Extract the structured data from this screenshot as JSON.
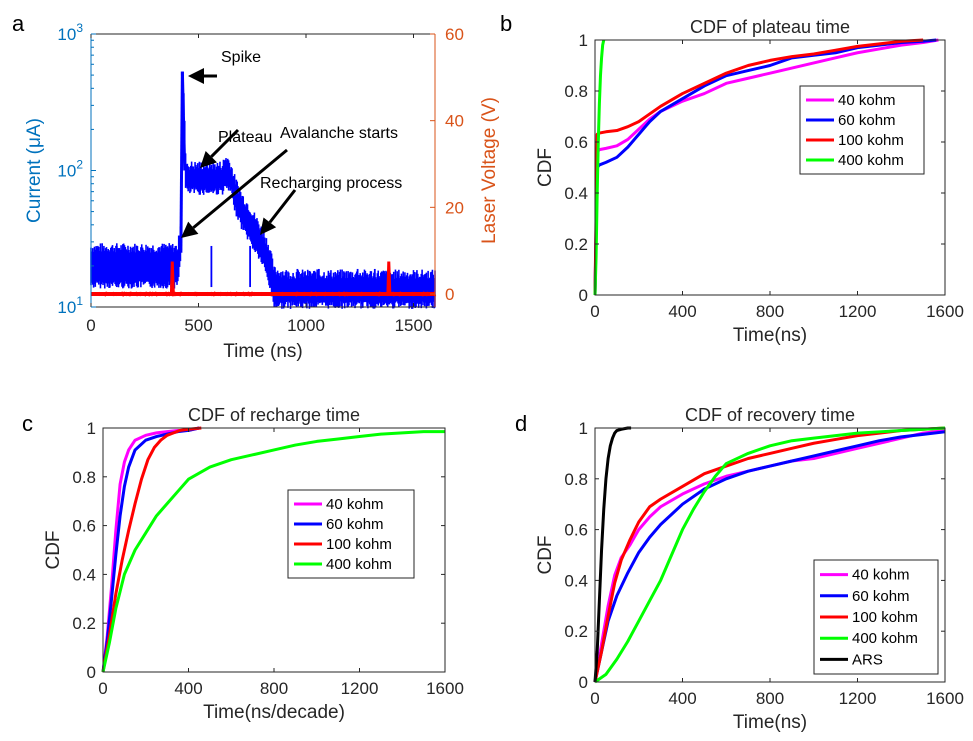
{
  "chart_data": [
    {
      "panel": "a",
      "type": "line",
      "title": "",
      "xlabel": "Time (ns)",
      "ylabel_left": "Current (μA)",
      "ylabel_right": "Laser Voltage (V)",
      "xlim": [
        0,
        1600
      ],
      "xticks": [
        "0",
        "500",
        "1000",
        "1500"
      ],
      "y_left_scale": "log",
      "y_left_lim": [
        10,
        1000
      ],
      "y_left_ticks": [
        {
          "base": "10",
          "exp": "1"
        },
        {
          "base": "10",
          "exp": "2"
        },
        {
          "base": "10",
          "exp": "3"
        }
      ],
      "y_right_lim": [
        -3,
        60
      ],
      "y_right_ticks": [
        "0",
        "20",
        "40",
        "60"
      ],
      "current_color": "#0000FF",
      "laser_color": "#FF0000",
      "current_trace": {
        "x": [
          0,
          395,
          405,
          418,
          425,
          432,
          440,
          450,
          470,
          520,
          570,
          610,
          630,
          650,
          670,
          700,
          750,
          800,
          830,
          850,
          920,
          1000,
          1100,
          1200,
          1300,
          1400,
          1500,
          1600
        ],
        "y": [
          20,
          20,
          20,
          32,
          530,
          300,
          110,
          85,
          85,
          85,
          85,
          85,
          100,
          85,
          65,
          52,
          38,
          28,
          20,
          13,
          12.5,
          12.5,
          12.5,
          12.5,
          12.5,
          12.5,
          12.5,
          12.5
        ],
        "noise_high": [
          25,
          25,
          25,
          40,
          540,
          320,
          115,
          100,
          100,
          100,
          100,
          100,
          115,
          100,
          78,
          60,
          45,
          32,
          25,
          17,
          16,
          16,
          16,
          16,
          16,
          16,
          16,
          16
        ],
        "noise_low": [
          15.5,
          15.5,
          15.5,
          25,
          480,
          260,
          80,
          75,
          75,
          75,
          75,
          75,
          80,
          75,
          55,
          42,
          30,
          22,
          15.5,
          11,
          11,
          11,
          11,
          11,
          11,
          11,
          11,
          11
        ]
      },
      "laser_trace": {
        "baseline": 0,
        "pulses": [
          {
            "x": 378,
            "peak": 7.5
          },
          {
            "x": 1385,
            "peak": 7.5
          }
        ]
      },
      "annotations": [
        {
          "text": "Spike",
          "x": 425,
          "y": 530
        },
        {
          "text": "Plateau",
          "x": 505,
          "y": 90
        },
        {
          "text": "Avalanche starts",
          "x": 418,
          "y": 32
        },
        {
          "text": "Recharging process",
          "x": 805,
          "y": 33
        }
      ]
    },
    {
      "panel": "b",
      "type": "line",
      "title": "CDF of plateau time",
      "xlabel": "Time(ns)",
      "ylabel": "CDF",
      "xlim": [
        0,
        1600
      ],
      "ylim": [
        0,
        1
      ],
      "xticks": [
        "0",
        "400",
        "800",
        "1200",
        "1600"
      ],
      "yticks": [
        "0",
        "0.2",
        "0.4",
        "0.6",
        "0.8",
        "1"
      ],
      "legend_position": "right",
      "series": [
        {
          "name": "40 kohm",
          "color": "#FF00FF",
          "x": [
            0,
            10,
            20,
            50,
            100,
            150,
            200,
            250,
            300,
            400,
            500,
            600,
            700,
            800,
            900,
            1000,
            1100,
            1200,
            1300,
            1400,
            1500,
            1570
          ],
          "y": [
            0,
            0.56,
            0.57,
            0.575,
            0.585,
            0.61,
            0.65,
            0.69,
            0.72,
            0.76,
            0.79,
            0.83,
            0.85,
            0.87,
            0.89,
            0.91,
            0.93,
            0.95,
            0.965,
            0.98,
            0.99,
            1
          ]
        },
        {
          "name": "60 kohm",
          "color": "#0000FF",
          "x": [
            0,
            10,
            20,
            50,
            100,
            150,
            200,
            250,
            300,
            400,
            500,
            600,
            700,
            800,
            900,
            1000,
            1100,
            1200,
            1300,
            1400,
            1500,
            1560
          ],
          "y": [
            0,
            0.5,
            0.51,
            0.52,
            0.54,
            0.58,
            0.63,
            0.68,
            0.72,
            0.77,
            0.82,
            0.86,
            0.88,
            0.9,
            0.93,
            0.94,
            0.95,
            0.97,
            0.98,
            0.99,
            0.995,
            1
          ]
        },
        {
          "name": "100 kohm",
          "color": "#FF0000",
          "x": [
            0,
            10,
            20,
            50,
            100,
            150,
            200,
            250,
            300,
            400,
            500,
            600,
            700,
            800,
            900,
            1000,
            1100,
            1200,
            1300,
            1400,
            1500
          ],
          "y": [
            0,
            0.63,
            0.635,
            0.64,
            0.645,
            0.66,
            0.68,
            0.71,
            0.74,
            0.79,
            0.83,
            0.87,
            0.9,
            0.92,
            0.935,
            0.945,
            0.96,
            0.975,
            0.985,
            0.995,
            1
          ]
        },
        {
          "name": "400 kohm",
          "color": "#00FF00",
          "x": [
            0,
            5,
            10,
            15,
            20,
            25,
            30,
            35,
            40
          ],
          "y": [
            0,
            0.15,
            0.4,
            0.6,
            0.75,
            0.86,
            0.93,
            0.98,
            1
          ]
        }
      ]
    },
    {
      "panel": "c",
      "type": "line",
      "title": "CDF of recharge time",
      "xlabel": "Time(ns/decade)",
      "ylabel": "CDF",
      "xlim": [
        0,
        1600
      ],
      "ylim": [
        0,
        1
      ],
      "xticks": [
        "0",
        "400",
        "800",
        "1200",
        "1600"
      ],
      "yticks": [
        "0",
        "0.2",
        "0.4",
        "0.6",
        "0.8",
        "1"
      ],
      "legend_position": "right",
      "series": [
        {
          "name": "40 kohm",
          "color": "#FF00FF",
          "x": [
            0,
            20,
            40,
            60,
            80,
            100,
            120,
            150,
            200,
            250,
            300,
            350,
            400,
            450
          ],
          "y": [
            0,
            0.15,
            0.35,
            0.58,
            0.77,
            0.86,
            0.91,
            0.95,
            0.97,
            0.98,
            0.985,
            0.99,
            0.99,
            1
          ]
        },
        {
          "name": "60 kohm",
          "color": "#0000FF",
          "x": [
            0,
            20,
            40,
            60,
            80,
            100,
            120,
            150,
            200,
            250,
            300,
            350,
            400,
            450
          ],
          "y": [
            0,
            0.13,
            0.3,
            0.48,
            0.64,
            0.76,
            0.84,
            0.91,
            0.95,
            0.965,
            0.975,
            0.985,
            0.99,
            1
          ]
        },
        {
          "name": "100 kohm",
          "color": "#FF0000",
          "x": [
            0,
            30,
            60,
            90,
            120,
            150,
            180,
            210,
            240,
            270,
            300,
            330,
            360,
            400,
            460
          ],
          "y": [
            0,
            0.15,
            0.32,
            0.46,
            0.58,
            0.69,
            0.79,
            0.87,
            0.92,
            0.95,
            0.97,
            0.98,
            0.99,
            0.995,
            1
          ]
        },
        {
          "name": "400 kohm",
          "color": "#00FF00",
          "x": [
            0,
            30,
            60,
            100,
            150,
            200,
            250,
            300,
            350,
            400,
            500,
            600,
            700,
            800,
            900,
            1000,
            1100,
            1200,
            1300,
            1400,
            1500,
            1600
          ],
          "y": [
            0,
            0.12,
            0.26,
            0.4,
            0.5,
            0.57,
            0.64,
            0.69,
            0.74,
            0.79,
            0.84,
            0.87,
            0.89,
            0.91,
            0.93,
            0.945,
            0.955,
            0.965,
            0.975,
            0.98,
            0.985,
            0.985
          ]
        }
      ]
    },
    {
      "panel": "d",
      "type": "line",
      "title": "CDF of recovery time",
      "xlabel": "Time(ns)",
      "ylabel": "CDF",
      "xlim": [
        0,
        1600
      ],
      "ylim": [
        0,
        1
      ],
      "xticks": [
        "0",
        "400",
        "800",
        "1200",
        "1600"
      ],
      "yticks": [
        "0",
        "0.2",
        "0.4",
        "0.6",
        "0.8",
        "1"
      ],
      "legend_position": "bottom-right",
      "series": [
        {
          "name": "40 kohm",
          "color": "#FF00FF",
          "x": [
            0,
            30,
            60,
            90,
            120,
            160,
            200,
            250,
            300,
            400,
            500,
            600,
            700,
            800,
            900,
            1000,
            1100,
            1200,
            1300,
            1400,
            1500,
            1600
          ],
          "y": [
            0,
            0.15,
            0.3,
            0.42,
            0.49,
            0.54,
            0.6,
            0.65,
            0.69,
            0.74,
            0.78,
            0.81,
            0.83,
            0.85,
            0.87,
            0.88,
            0.9,
            0.92,
            0.94,
            0.96,
            0.98,
            0.99
          ]
        },
        {
          "name": "60 kohm",
          "color": "#0000FF",
          "x": [
            0,
            30,
            60,
            100,
            150,
            200,
            250,
            300,
            350,
            400,
            500,
            600,
            700,
            800,
            900,
            1000,
            1100,
            1200,
            1300,
            1400,
            1500,
            1600
          ],
          "y": [
            0,
            0.12,
            0.24,
            0.34,
            0.43,
            0.51,
            0.57,
            0.62,
            0.66,
            0.7,
            0.76,
            0.8,
            0.83,
            0.85,
            0.87,
            0.89,
            0.91,
            0.93,
            0.95,
            0.965,
            0.975,
            0.985
          ]
        },
        {
          "name": "100 kohm",
          "color": "#FF0000",
          "x": [
            0,
            30,
            60,
            90,
            120,
            160,
            200,
            250,
            300,
            400,
            500,
            600,
            700,
            800,
            900,
            1000,
            1100,
            1200,
            1300,
            1400,
            1500,
            1600
          ],
          "y": [
            0,
            0.12,
            0.26,
            0.39,
            0.48,
            0.56,
            0.63,
            0.69,
            0.72,
            0.77,
            0.82,
            0.85,
            0.88,
            0.9,
            0.92,
            0.94,
            0.955,
            0.97,
            0.98,
            0.99,
            0.995,
            1
          ]
        },
        {
          "name": "400 kohm",
          "color": "#00FF00",
          "x": [
            0,
            50,
            100,
            150,
            200,
            250,
            300,
            350,
            400,
            450,
            500,
            550,
            600,
            700,
            800,
            900,
            1000,
            1100,
            1200,
            1300,
            1400,
            1500,
            1600
          ],
          "y": [
            0,
            0.03,
            0.09,
            0.16,
            0.24,
            0.32,
            0.4,
            0.5,
            0.6,
            0.68,
            0.75,
            0.81,
            0.86,
            0.9,
            0.93,
            0.95,
            0.96,
            0.97,
            0.98,
            0.985,
            0.99,
            0.995,
            1
          ]
        },
        {
          "name": "ARS",
          "color": "#000000",
          "x": [
            0,
            10,
            20,
            30,
            40,
            50,
            60,
            70,
            80,
            90,
            100,
            120,
            150,
            165
          ],
          "y": [
            0,
            0.12,
            0.32,
            0.52,
            0.68,
            0.8,
            0.88,
            0.93,
            0.96,
            0.98,
            0.99,
            0.995,
            1,
            1
          ]
        }
      ]
    }
  ]
}
